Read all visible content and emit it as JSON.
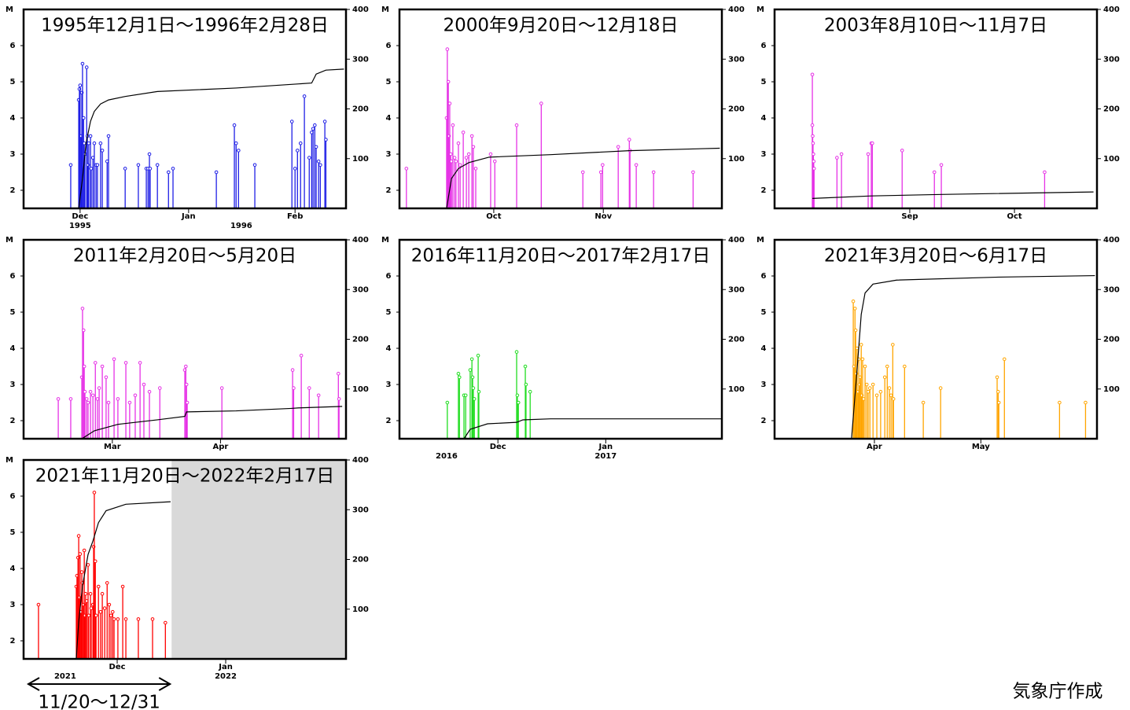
{
  "chart_data": [
    {
      "type": "stem",
      "title": "1995年12月1日～1996年2月28日",
      "color": "#1f1fe6",
      "ylabel": "M",
      "ylim": [
        1.5,
        7
      ],
      "yticks": [
        2,
        3,
        4,
        5,
        6
      ],
      "y2lim": [
        0,
        400
      ],
      "y2ticks": [
        100,
        200,
        300,
        400
      ],
      "xlim": [
        0,
        93
      ],
      "xticks": [
        {
          "value": 16.3,
          "label": "Dec"
        },
        {
          "value": 47.6,
          "label": "Jan"
        },
        {
          "value": 78.3,
          "label": "Feb"
        }
      ],
      "xyears": [
        {
          "value": 16.3,
          "label": "1995"
        },
        {
          "value": 62.8,
          "label": "1996"
        }
      ],
      "series": [
        {
          "x": [
            13.6,
            15.9,
            16.1,
            16.3,
            16.6,
            16.8,
            17.0,
            17.3,
            17.5,
            17.7,
            18.2,
            18.4,
            18.6,
            18.8,
            19.3,
            19.5,
            20.0,
            20.4,
            20.9,
            21.3,
            22.2,
            22.7,
            24.1,
            24.5,
            29.3,
            33.1,
            35.4,
            35.9,
            36.3,
            36.5,
            38.6,
            41.8,
            43.1,
            55.6,
            60.8,
            61.3,
            62.0,
            66.7,
            77.4,
            78.3,
            79.0,
            79.9,
            81.0,
            82.4,
            83.1,
            83.5,
            84.0,
            84.4,
            85.1,
            85.6,
            86.9,
            87.2
          ],
          "values": [
            2.7,
            4.5,
            4.8,
            4.9,
            3.5,
            4.7,
            5.5,
            4.0,
            3.3,
            3.0,
            5.4,
            3.5,
            2.7,
            3.3,
            3.5,
            2.6,
            2.9,
            3.3,
            2.7,
            2.7,
            3.3,
            3.1,
            2.8,
            3.5,
            2.6,
            2.7,
            2.6,
            2.6,
            3.0,
            2.6,
            2.7,
            2.5,
            2.6,
            2.5,
            3.8,
            3.3,
            3.1,
            2.7,
            3.9,
            2.6,
            3.1,
            3.3,
            4.6,
            2.9,
            3.6,
            3.7,
            3.8,
            3.2,
            2.8,
            2.7,
            3.9,
            3.4
          ]
        },
        {
          "axis": "y2",
          "color": "#000000",
          "x": [
            15.9,
            17,
            18,
            19.3,
            20.4,
            22.2,
            24.5,
            29.3,
            38.6,
            61.3,
            83.1,
            84.4,
            87.2,
            92.4
          ],
          "values": [
            0,
            60,
            130,
            175,
            195,
            210,
            218,
            225,
            235,
            242,
            252,
            270,
            278,
            280
          ]
        }
      ]
    },
    {
      "type": "stem",
      "title": "2000年9月20日～12月18日",
      "color": "#e632e6",
      "ylabel": "M",
      "ylim": [
        1.5,
        7
      ],
      "yticks": [
        2,
        3,
        4,
        5,
        6
      ],
      "y2lim": [
        0,
        400
      ],
      "y2ticks": [
        100,
        200,
        300,
        400
      ],
      "xlim": [
        0,
        93
      ],
      "xticks": [
        {
          "value": 27.2,
          "label": "Oct"
        },
        {
          "value": 58.8,
          "label": "Nov"
        }
      ],
      "series": [
        {
          "x": [
            2.0,
            13.6,
            13.8,
            14.1,
            14.3,
            14.5,
            14.8,
            15.0,
            15.4,
            15.9,
            16.3,
            17.0,
            17.5,
            18.4,
            19.3,
            20.0,
            20.9,
            21.3,
            22.0,
            26.3,
            27.5,
            33.8,
            40.9,
            52.9,
            58.1,
            58.6,
            63.1,
            66.3,
            66.5,
            68.3,
            73.3,
            84.7
          ],
          "values": [
            2.6,
            4.0,
            5.9,
            5.0,
            3.5,
            4.4,
            3.0,
            2.8,
            3.8,
            2.9,
            2.8,
            3.3,
            2.7,
            3.6,
            2.9,
            3.0,
            3.5,
            3.2,
            2.6,
            3.0,
            2.8,
            3.8,
            4.4,
            2.5,
            2.5,
            2.7,
            3.2,
            3.4,
            3.1,
            2.7,
            2.5,
            2.5
          ]
        },
        {
          "axis": "y2",
          "color": "#000000",
          "x": [
            13.6,
            15,
            17,
            20,
            25.9,
            43.6,
            66.3,
            92.4
          ],
          "values": [
            0,
            60,
            80,
            92,
            103,
            108,
            116,
            121
          ]
        }
      ]
    },
    {
      "type": "stem",
      "title": "2003年8月10日～11月7日",
      "color": "#e632e6",
      "ylabel": "M",
      "ylim": [
        1.5,
        7
      ],
      "yticks": [
        2,
        3,
        4,
        5,
        6
      ],
      "y2lim": [
        0,
        400
      ],
      "y2ticks": [
        100,
        200,
        300,
        400
      ],
      "xlim": [
        0,
        93
      ],
      "xticks": [
        {
          "value": 39.0,
          "label": "Sep"
        },
        {
          "value": 69.2,
          "label": "Oct"
        }
      ],
      "series": [
        {
          "x": [
            10.9,
            10.9,
            11.0,
            11.1,
            11.2,
            11.3,
            11.4,
            18.0,
            19.3,
            27.0,
            27.9,
            28.2,
            36.8,
            46.1,
            48.1,
            77.9
          ],
          "values": [
            5.2,
            3.8,
            3.5,
            3.3,
            3.0,
            2.8,
            2.6,
            2.9,
            3.0,
            3.0,
            3.3,
            3.3,
            3.1,
            2.5,
            2.7,
            2.5
          ]
        },
        {
          "axis": "y2",
          "color": "#000000",
          "x": [
            10.9,
            27.9,
            48.1,
            92.0
          ],
          "values": [
            20,
            25,
            28,
            33
          ]
        }
      ]
    },
    {
      "type": "stem",
      "title": "2011年2月20日～5月20日",
      "color": "#e632e6",
      "ylabel": "M",
      "ylim": [
        1.5,
        7
      ],
      "yticks": [
        2,
        3,
        4,
        5,
        6
      ],
      "y2lim": [
        0,
        400
      ],
      "y2ticks": [
        100,
        200,
        300,
        400
      ],
      "xlim": [
        0,
        93
      ],
      "xticks": [
        {
          "value": 25.6,
          "label": "Mar"
        },
        {
          "value": 56.8,
          "label": "Apr"
        }
      ],
      "series": [
        {
          "x": [
            10.0,
            13.6,
            16.8,
            17.0,
            17.3,
            17.5,
            17.7,
            18.2,
            18.6,
            19.3,
            20.0,
            20.7,
            21.3,
            21.8,
            22.7,
            23.8,
            24.5,
            26.1,
            27.2,
            29.5,
            30.6,
            32.2,
            33.6,
            34.7,
            36.3,
            39.3,
            46.5,
            46.8,
            47.0,
            47.2,
            57.2,
            77.6,
            77.9,
            80.1,
            82.4,
            85.1,
            90.8,
            91.0
          ],
          "values": [
            2.6,
            2.6,
            3.2,
            5.1,
            4.5,
            3.5,
            2.8,
            2.6,
            2.5,
            2.8,
            2.7,
            3.6,
            2.6,
            2.9,
            3.5,
            3.2,
            2.5,
            3.7,
            2.6,
            3.6,
            2.5,
            2.7,
            3.6,
            3.0,
            2.8,
            2.9,
            3.4,
            3.5,
            3.0,
            2.5,
            2.9,
            3.4,
            2.9,
            3.8,
            2.9,
            2.7,
            3.3,
            2.6
          ]
        },
        {
          "axis": "y2",
          "color": "#000000",
          "x": [
            16.8,
            20.4,
            27.2,
            38.6,
            46.5,
            47.0,
            61.3,
            77.2,
            79.4,
            91.9
          ],
          "values": [
            0,
            16,
            29,
            38,
            45,
            54,
            56,
            61,
            62,
            65
          ]
        }
      ]
    },
    {
      "type": "stem",
      "title": "2016年11月20日～2017年2月17日",
      "color": "#22dd22",
      "ylabel": "M",
      "ylim": [
        1.5,
        7
      ],
      "yticks": [
        2,
        3,
        4,
        5,
        6
      ],
      "y2lim": [
        0,
        400
      ],
      "y2ticks": [
        100,
        200,
        300,
        400
      ],
      "xlim": [
        0,
        93
      ],
      "xticks": [
        {
          "value": 28.4,
          "label": "Dec"
        },
        {
          "value": 59.5,
          "label": "Jan"
        }
      ],
      "xyears": [
        {
          "value": 13.6,
          "label": "2016"
        },
        {
          "value": 59.5,
          "label": "2017"
        }
      ],
      "series": [
        {
          "x": [
            13.8,
            17.0,
            17.3,
            18.6,
            19.1,
            20.4,
            20.9,
            21.1,
            21.3,
            21.6,
            22.7,
            22.9,
            33.8,
            34.0,
            34.3,
            36.3,
            36.5,
            37.7
          ],
          "values": [
            2.5,
            3.3,
            3.2,
            2.7,
            2.7,
            3.4,
            3.7,
            3.2,
            2.9,
            2.6,
            3.8,
            2.8,
            3.9,
            2.7,
            2.5,
            3.5,
            3.0,
            2.8
          ]
        },
        {
          "axis": "y2",
          "color": "#000000",
          "x": [
            18.6,
            20.4,
            25.4,
            33.8,
            35.6,
            43.6,
            93
          ],
          "values": [
            0,
            19,
            30,
            33,
            38,
            40,
            40
          ]
        }
      ]
    },
    {
      "type": "stem",
      "title": "2021年3月20日～6月17日",
      "color": "#ffa500",
      "ylabel": "M",
      "ylim": [
        1.5,
        7
      ],
      "yticks": [
        2,
        3,
        4,
        5,
        6
      ],
      "y2lim": [
        0,
        400
      ],
      "y2ticks": [
        100,
        200,
        300,
        400
      ],
      "xlim": [
        0,
        93
      ],
      "xticks": [
        {
          "value": 28.8,
          "label": "Apr"
        },
        {
          "value": 59.5,
          "label": "May"
        }
      ],
      "series": [
        {
          "x": [
            22.7,
            22.9,
            23.2,
            23.4,
            23.6,
            23.8,
            24.1,
            24.3,
            24.5,
            24.7,
            25.0,
            25.2,
            25.4,
            25.7,
            26.1,
            26.6,
            27.0,
            27.5,
            28.4,
            29.5,
            30.6,
            31.8,
            32.5,
            33.1,
            33.6,
            34.1,
            34.3,
            37.5,
            42.9,
            47.9,
            64.2,
            64.5,
            64.7,
            66.3,
            82.2,
            89.7
          ],
          "values": [
            5.3,
            3.5,
            5.1,
            4.5,
            3.3,
            4.0,
            2.8,
            3.7,
            3.0,
            3.2,
            4.1,
            2.7,
            3.7,
            2.6,
            3.5,
            3.0,
            2.8,
            2.9,
            3.0,
            2.7,
            2.8,
            3.2,
            3.5,
            2.9,
            2.7,
            4.1,
            2.6,
            3.5,
            2.5,
            2.9,
            3.2,
            2.8,
            2.5,
            3.7,
            2.5,
            2.5
          ]
        },
        {
          "axis": "y2",
          "color": "#000000",
          "x": [
            22.2,
            23.8,
            25.0,
            26.1,
            28.4,
            35.2,
            64.7,
            92.4
          ],
          "values": [
            0,
            139,
            250,
            293,
            311,
            319,
            325,
            328
          ]
        }
      ]
    },
    {
      "type": "stem",
      "title": "2021年11月20日～2022年2月17日",
      "color": "#ff0000",
      "ylabel": "M",
      "ylim": [
        1.5,
        7
      ],
      "yticks": [
        2,
        3,
        4,
        5,
        6
      ],
      "y2lim": [
        0,
        400
      ],
      "y2ticks": [
        100,
        200,
        300,
        400
      ],
      "xlim": [
        0,
        93
      ],
      "xticks": [
        {
          "value": 27.0,
          "label": "Dec"
        },
        {
          "value": 58.3,
          "label": "Jan"
        }
      ],
      "xyears": [
        {
          "value": 12.0,
          "label": "2021"
        },
        {
          "value": 58.3,
          "label": "2022"
        }
      ],
      "shaded_from": 42.7,
      "annotation": "11/20～12/31",
      "series": [
        {
          "x": [
            4.3,
            15.2,
            15.4,
            15.7,
            15.9,
            16.1,
            16.3,
            16.6,
            16.8,
            17.0,
            17.3,
            17.5,
            17.7,
            17.9,
            18.2,
            18.6,
            18.8,
            19.3,
            19.5,
            20.0,
            20.2,
            20.4,
            20.7,
            20.9,
            21.6,
            22.2,
            22.7,
            23.4,
            24.1,
            24.7,
            25.2,
            25.7,
            26.1,
            27.2,
            28.6,
            29.5,
            33.1,
            37.2,
            40.9
          ],
          "values": [
            3.0,
            3.5,
            3.8,
            4.3,
            4.9,
            3.2,
            4.4,
            2.8,
            3.9,
            3.6,
            3.0,
            4.5,
            2.7,
            3.3,
            3.1,
            4.1,
            2.7,
            3.3,
            2.9,
            3.0,
            4.6,
            6.1,
            4.2,
            2.7,
            3.5,
            2.8,
            3.3,
            2.9,
            3.6,
            3.0,
            2.7,
            2.8,
            2.6,
            2.6,
            3.5,
            2.6,
            2.6,
            2.6,
            2.5
          ]
        },
        {
          "axis": "y2",
          "color": "#000000",
          "x": [
            15.2,
            15.9,
            17.0,
            18.6,
            20.0,
            21.6,
            23.8,
            29.5,
            42.4
          ],
          "values": [
            0,
            75,
            147,
            210,
            237,
            274,
            298,
            311,
            316
          ]
        }
      ]
    }
  ],
  "credit": "気象庁作成"
}
